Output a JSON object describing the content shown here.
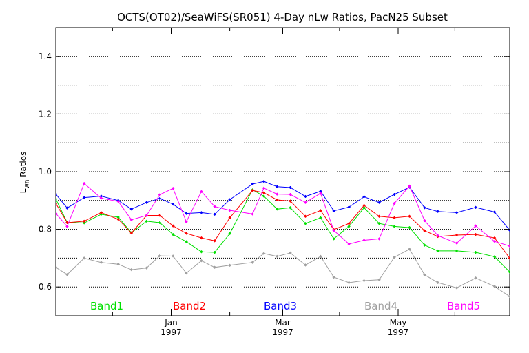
{
  "chart_data": {
    "type": "line",
    "title": "OCTS(OT02)/SeaWiFS(SR051) 4-Day nLw Ratios, PacN25 Subset",
    "ylabel": "L",
    "ylabel_sub": "wn",
    "ylabel_rest": " Ratios",
    "xlabel": "",
    "ylim": [
      0.5,
      1.5
    ],
    "yticks": [
      0.6,
      0.8,
      1.0,
      1.2,
      1.4
    ],
    "ytick_labels": [
      "0.6",
      "0.8",
      "1.0",
      "1.2",
      "1.4"
    ],
    "x_unit": "days since 1996-11-01",
    "xlim": [
      0,
      240
    ],
    "xtick_major": [
      {
        "x": 61,
        "line1": "Jan",
        "line2": "1997"
      },
      {
        "x": 120,
        "line1": "Mar",
        "line2": "1997"
      },
      {
        "x": 181,
        "line1": "May",
        "line2": "1997"
      }
    ],
    "xtick_minor": [
      0,
      30,
      92,
      150,
      211,
      240
    ],
    "grid": true,
    "legend_position": "bottom",
    "series": [
      {
        "name": "Band1",
        "color": "#00e000",
        "x": [
          0,
          6,
          15,
          24,
          33,
          40,
          48,
          55,
          62,
          69,
          77,
          84,
          92,
          104,
          110,
          117,
          124,
          132,
          140,
          147,
          155,
          163,
          171,
          179,
          187,
          195,
          202,
          212,
          222,
          232,
          240
        ],
        "y": [
          0.905,
          0.824,
          0.822,
          0.852,
          0.842,
          0.788,
          0.828,
          0.823,
          0.782,
          0.757,
          0.722,
          0.72,
          0.785,
          0.937,
          0.915,
          0.87,
          0.875,
          0.82,
          0.84,
          0.767,
          0.81,
          0.875,
          0.82,
          0.81,
          0.806,
          0.745,
          0.725,
          0.725,
          0.72,
          0.705,
          0.652
        ]
      },
      {
        "name": "Band2",
        "color": "#ff0000",
        "x": [
          0,
          6,
          15,
          24,
          33,
          40,
          48,
          55,
          62,
          69,
          77,
          84,
          92,
          104,
          110,
          117,
          124,
          132,
          140,
          147,
          155,
          163,
          171,
          179,
          187,
          195,
          202,
          212,
          222,
          232,
          240
        ],
        "y": [
          0.89,
          0.823,
          0.828,
          0.858,
          0.835,
          0.787,
          0.848,
          0.848,
          0.812,
          0.786,
          0.77,
          0.76,
          0.84,
          0.935,
          0.927,
          0.902,
          0.898,
          0.845,
          0.865,
          0.799,
          0.82,
          0.883,
          0.845,
          0.84,
          0.845,
          0.795,
          0.775,
          0.78,
          0.782,
          0.77,
          0.7
        ]
      },
      {
        "name": "Band3",
        "color": "#0000ff",
        "x": [
          0,
          6,
          15,
          24,
          33,
          40,
          48,
          55,
          62,
          69,
          77,
          84,
          92,
          104,
          110,
          117,
          124,
          132,
          140,
          147,
          155,
          163,
          171,
          179,
          187,
          195,
          202,
          212,
          222,
          232,
          240
        ],
        "y": [
          0.922,
          0.874,
          0.91,
          0.915,
          0.9,
          0.87,
          0.893,
          0.907,
          0.887,
          0.855,
          0.858,
          0.852,
          0.903,
          0.957,
          0.966,
          0.948,
          0.945,
          0.914,
          0.932,
          0.864,
          0.877,
          0.913,
          0.893,
          0.921,
          0.946,
          0.875,
          0.862,
          0.858,
          0.876,
          0.86,
          0.797
        ]
      },
      {
        "name": "Band4",
        "color": "#a0a0a0",
        "x": [
          0,
          6,
          15,
          24,
          33,
          40,
          48,
          55,
          62,
          69,
          77,
          84,
          92,
          104,
          110,
          117,
          124,
          132,
          140,
          147,
          155,
          163,
          171,
          179,
          187,
          195,
          202,
          212,
          222,
          232,
          240
        ],
        "y": [
          0.668,
          0.643,
          0.7,
          0.685,
          0.679,
          0.66,
          0.666,
          0.708,
          0.707,
          0.648,
          0.691,
          0.668,
          0.675,
          0.685,
          0.716,
          0.706,
          0.718,
          0.676,
          0.706,
          0.634,
          0.615,
          0.622,
          0.625,
          0.703,
          0.731,
          0.642,
          0.615,
          0.597,
          0.631,
          0.602,
          0.567
        ]
      },
      {
        "name": "Band5",
        "color": "#ff00ff",
        "x": [
          0,
          6,
          15,
          24,
          33,
          40,
          48,
          55,
          62,
          69,
          77,
          84,
          92,
          104,
          110,
          117,
          124,
          132,
          140,
          147,
          155,
          163,
          171,
          179,
          187,
          195,
          202,
          212,
          222,
          232,
          240
        ],
        "y": [
          0.855,
          0.81,
          0.959,
          0.908,
          0.897,
          0.833,
          0.848,
          0.92,
          0.942,
          0.826,
          0.931,
          0.879,
          0.866,
          0.853,
          0.943,
          0.922,
          0.921,
          0.893,
          0.925,
          0.796,
          0.749,
          0.762,
          0.767,
          0.89,
          0.95,
          0.83,
          0.778,
          0.752,
          0.812,
          0.758,
          0.742
        ]
      }
    ]
  }
}
